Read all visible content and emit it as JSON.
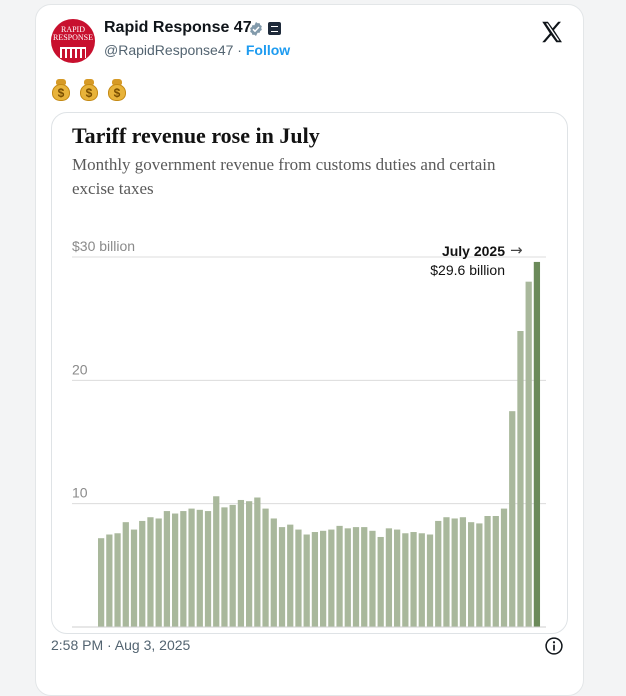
{
  "author": {
    "name": "Rapid Response 47",
    "handle": "@RapidResponse47",
    "separator": "·",
    "follow_label": "Follow",
    "avatar_text": "RAPID RESPONSE",
    "verified_icon": "verified-badge-icon",
    "affiliation_icon": "affiliation-badge-icon"
  },
  "platform_logo": "x-logo-icon",
  "tweet_text": {
    "emoji_count": 3,
    "emoji_sign": "$"
  },
  "timestamp": "2:58 PM · Aug 3, 2025",
  "colors": {
    "bar": "#a9b89c",
    "bar_highlight": "#6b8a5a",
    "link": "#1d9bf0",
    "avatar_bg": "#c8102e",
    "grid": "#dcdcdc"
  },
  "chart_data": {
    "type": "bar",
    "title": "Tariff revenue rose in July",
    "subtitle": "Monthly government revenue from customs duties and certain excise taxes",
    "ylim": [
      0,
      30
    ],
    "y_ticks": [
      {
        "value": 30,
        "label": "$30 billion"
      },
      {
        "value": 20,
        "label": "20"
      },
      {
        "value": 10,
        "label": "10"
      }
    ],
    "annotation": {
      "label": "July 2025",
      "value_label": "$29.6 billion",
      "arrow": "→"
    },
    "values": [
      7.2,
      7.5,
      7.6,
      8.5,
      7.9,
      8.6,
      8.9,
      8.8,
      9.4,
      9.2,
      9.4,
      9.6,
      9.5,
      9.4,
      10.6,
      9.7,
      9.9,
      10.3,
      10.2,
      10.5,
      9.6,
      8.8,
      8.1,
      8.3,
      7.9,
      7.5,
      7.7,
      7.8,
      7.9,
      8.2,
      8.0,
      8.1,
      8.1,
      7.8,
      7.3,
      8.0,
      7.9,
      7.6,
      7.7,
      7.6,
      7.5,
      8.6,
      8.9,
      8.8,
      8.9,
      8.5,
      8.4,
      9.0,
      9.0,
      9.6,
      17.5,
      24.0,
      28.0,
      29.6
    ]
  }
}
